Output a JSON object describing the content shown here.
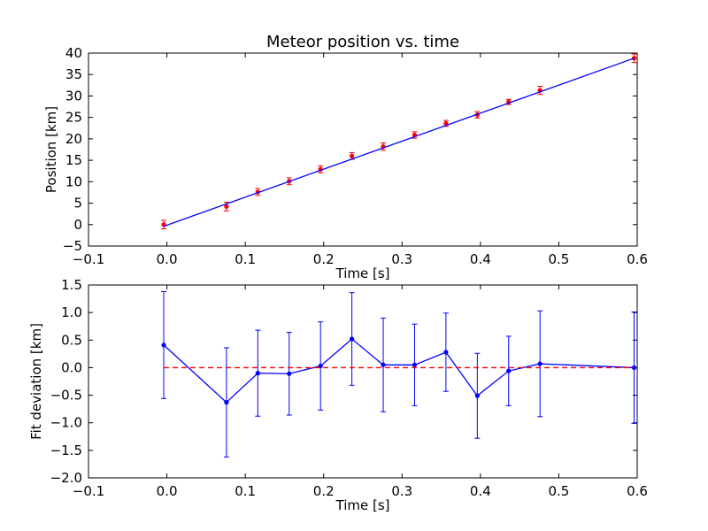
{
  "chart_data": [
    {
      "type": "scatter",
      "title": "Meteor position vs. time",
      "xlabel": "Time [s]",
      "ylabel": "Position [km]",
      "xlim": [
        -0.1,
        0.6
      ],
      "ylim": [
        -5,
        40
      ],
      "xticks": [
        "−0.1",
        "0.0",
        "0.1",
        "0.2",
        "0.3",
        "0.4",
        "0.5",
        "0.6"
      ],
      "yticks": [
        "−5",
        "0",
        "5",
        "10",
        "15",
        "20",
        "25",
        "30",
        "35",
        "40"
      ],
      "xtick_values": [
        -0.1,
        0.0,
        0.1,
        0.2,
        0.3,
        0.4,
        0.5,
        0.6
      ],
      "ytick_values": [
        -5,
        0,
        5,
        10,
        15,
        20,
        25,
        30,
        35,
        40
      ],
      "grid": false,
      "series": [
        {
          "type": "errorbar",
          "color": "#ff0000",
          "errorbar_color": "#ff0000",
          "x": [
            -0.004,
            0.076,
            0.116,
            0.156,
            0.196,
            0.236,
            0.276,
            0.316,
            0.356,
            0.396,
            0.436,
            0.476,
            0.596
          ],
          "y": [
            0.0,
            4.2,
            7.6,
            10.1,
            12.9,
            16.0,
            18.2,
            20.9,
            23.6,
            25.6,
            28.6,
            31.3,
            38.8
          ],
          "yerr": [
            1.0,
            1.0,
            0.8,
            0.8,
            0.8,
            0.8,
            0.85,
            0.75,
            0.7,
            0.75,
            0.6,
            0.95,
            1.0
          ]
        },
        {
          "type": "line",
          "color": "#0000ff",
          "x": [
            -0.004,
            0.596
          ],
          "y": [
            -0.4,
            38.8
          ]
        }
      ]
    },
    {
      "type": "line",
      "xlabel": "Time [s]",
      "ylabel": "Fit deviation [km]",
      "xlim": [
        -0.1,
        0.6
      ],
      "ylim": [
        -2.0,
        1.5
      ],
      "xticks": [
        "−0.1",
        "0.0",
        "0.1",
        "0.2",
        "0.3",
        "0.4",
        "0.5",
        "0.6"
      ],
      "yticks": [
        "−2.0",
        "−1.5",
        "−1.0",
        "−0.5",
        "0.0",
        "0.5",
        "1.0",
        "1.5"
      ],
      "xtick_values": [
        -0.1,
        0.0,
        0.1,
        0.2,
        0.3,
        0.4,
        0.5,
        0.6
      ],
      "ytick_values": [
        -2.0,
        -1.5,
        -1.0,
        -0.5,
        0.0,
        0.5,
        1.0,
        1.5
      ],
      "grid": false,
      "series": [
        {
          "type": "errorbar-line",
          "color": "#0000ff",
          "x": [
            -0.004,
            0.076,
            0.116,
            0.156,
            0.196,
            0.236,
            0.276,
            0.316,
            0.356,
            0.396,
            0.436,
            0.476,
            0.596
          ],
          "y": [
            0.41,
            -0.63,
            -0.1,
            -0.11,
            0.03,
            0.52,
            0.05,
            0.05,
            0.28,
            -0.51,
            -0.06,
            0.07,
            0.0
          ],
          "yerr": [
            0.97,
            0.99,
            0.78,
            0.75,
            0.8,
            0.84,
            0.85,
            0.74,
            0.71,
            0.77,
            0.63,
            0.96,
            1.01
          ]
        },
        {
          "type": "hline",
          "style": "dashed",
          "color": "#ff0000",
          "x": [
            -0.004,
            0.596
          ],
          "y": [
            0.0,
            0.0
          ]
        }
      ]
    }
  ]
}
